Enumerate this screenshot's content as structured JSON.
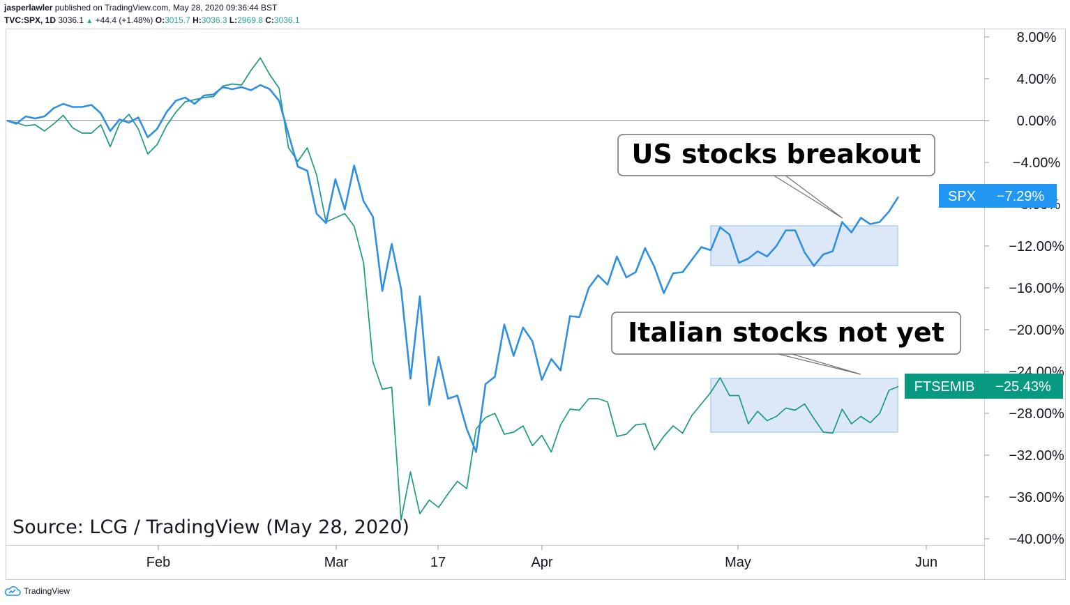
{
  "header": {
    "author": "jasperlawler",
    "published_text": "published on TradingView.com, May 28, 2020 09:36:44 BST",
    "symbol_line": "TVC:SPX, 1D",
    "last": "3036.1",
    "change": "+44.4 (+1.48%)",
    "o_label": "O:",
    "o_val": "3015.7",
    "h_label": "H:",
    "h_val": "3036.3",
    "l_label": "L:",
    "l_val": "2969.8",
    "c_label": "C:",
    "c_val": "3036.1"
  },
  "footer": {
    "brand": "TradingView"
  },
  "colors": {
    "spx": "#2f8fe0",
    "ftsemib": "#1a9a80",
    "spx_tag": "#2196f3",
    "ftse_tag": "#089981",
    "box_fill": "#dce8f8",
    "box_stroke": "#a9cdf0"
  },
  "chart_data": {
    "type": "line",
    "x_tick_labels": [
      "Feb",
      "Mar",
      "17",
      "Apr",
      "May",
      "Jun"
    ],
    "y_tick_labels": [
      "8.00%",
      "4.00%",
      "0.00%",
      "−4.00%",
      "−8.00%",
      "−12.00%",
      "−16.00%",
      "−20.00%",
      "−24.00%",
      "−28.00%",
      "−32.00%",
      "−36.00%",
      "−40.00%"
    ],
    "ylim": [
      -40,
      8
    ],
    "source_text": "Source: LCG / TradingView (May 28, 2020)",
    "annotations": [
      {
        "text": "US stocks breakout"
      },
      {
        "text": "Italian stocks not yet"
      }
    ],
    "series": [
      {
        "name": "SPX",
        "last_label": "−7.29%",
        "values": [
          0,
          -0.3,
          0.4,
          0.2,
          0.4,
          1.2,
          1.6,
          1.3,
          1.3,
          1.5,
          0.7,
          -1.0,
          0.1,
          -0.2,
          0.3,
          -1.6,
          -0.8,
          0.8,
          1.9,
          2.2,
          1.6,
          2.4,
          2.5,
          3.2,
          3.0,
          3.2,
          2.9,
          3.4,
          3.0,
          1.9,
          -1.3,
          -4.4,
          -4.8,
          -8.9,
          -9.8,
          -5.6,
          -8.5,
          -4.3,
          -7.7,
          -9.2,
          -16.3,
          -11.8,
          -16.1,
          -24.7,
          -16.8,
          -27.2,
          -22.6,
          -26.6,
          -26.3,
          -29.5,
          -31.7,
          -25.2,
          -24.5,
          -19.5,
          -22.5,
          -19.8,
          -21.1,
          -24.8,
          -22.8,
          -23.9,
          -18.7,
          -18.8,
          -16.0,
          -14.8,
          -15.7,
          -13.0,
          -15.0,
          -14.5,
          -12.2,
          -14.0,
          -16.5,
          -14.6,
          -14.5,
          -13.3,
          -12.1,
          -12.4,
          -10.2,
          -10.9,
          -13.6,
          -13.2,
          -12.5,
          -13.0,
          -12.0,
          -10.5,
          -10.5,
          -12.6,
          -13.9,
          -12.8,
          -12.5,
          -9.7,
          -10.7,
          -9.3,
          -9.9,
          -9.7,
          -8.7,
          -7.29
        ]
      },
      {
        "name": "FTSEMIB",
        "last_label": "−25.43%",
        "values": [
          0,
          -0.2,
          -0.5,
          -0.4,
          -1.0,
          -0.3,
          0.5,
          -0.7,
          -1.2,
          -1.2,
          -0.4,
          -2.5,
          -0.3,
          0.6,
          -0.8,
          -3.2,
          -2.3,
          -0.5,
          0.8,
          1.8,
          2.0,
          2.2,
          2.3,
          3.3,
          3.5,
          3.4,
          4.8,
          6.0,
          4.4,
          3.1,
          -2.6,
          -3.9,
          -2.6,
          -5.2,
          -9.7,
          -9.3,
          -8.9,
          -10.1,
          -13.6,
          -23.1,
          -25.7,
          -25.5,
          -38.2,
          -33.6,
          -37.6,
          -36.3,
          -37.0,
          -35.7,
          -34.5,
          -35.2,
          -29.5,
          -28.4,
          -28.0,
          -30.0,
          -29.8,
          -29.2,
          -31.1,
          -30.1,
          -31.7,
          -29.1,
          -27.6,
          -27.7,
          -26.6,
          -26.6,
          -26.9,
          -30.2,
          -30.0,
          -29.1,
          -29.0,
          -31.5,
          -30.2,
          -29.2,
          -29.9,
          -28.2,
          -27.1,
          -26.0,
          -24.6,
          -26.3,
          -26.3,
          -29.0,
          -27.8,
          -28.7,
          -28.3,
          -27.5,
          -27.7,
          -27.1,
          -28.5,
          -29.8,
          -29.9,
          -27.6,
          -29.0,
          -28.3,
          -28.9,
          -28.0,
          -25.8,
          -25.43
        ]
      }
    ]
  }
}
